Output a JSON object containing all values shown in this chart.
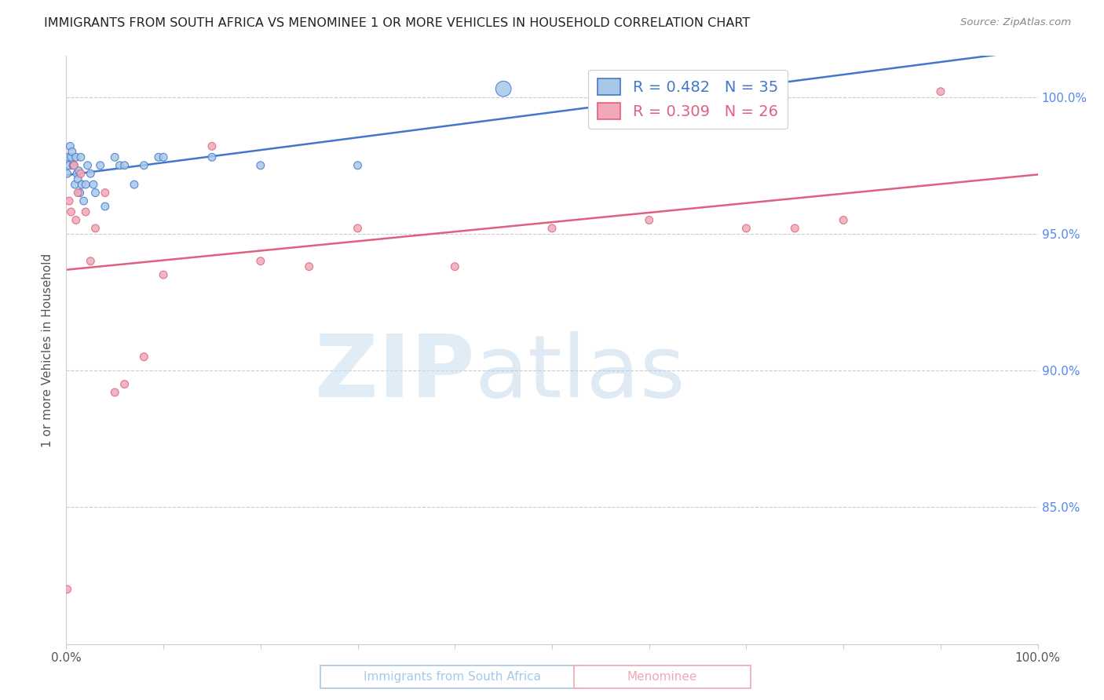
{
  "title": "IMMIGRANTS FROM SOUTH AFRICA VS MENOMINEE 1 OR MORE VEHICLES IN HOUSEHOLD CORRELATION CHART",
  "source_text": "Source: ZipAtlas.com",
  "ylabel": "1 or more Vehicles in Household",
  "legend_label1": "Immigrants from South Africa",
  "legend_label2": "Menominee",
  "R1": 0.482,
  "N1": 35,
  "R2": 0.309,
  "N2": 26,
  "xlim": [
    0.0,
    100.0
  ],
  "ylim": [
    80.0,
    101.5
  ],
  "yticks": [
    85.0,
    90.0,
    95.0,
    100.0
  ],
  "xticks": [
    0.0,
    10.0,
    20.0,
    30.0,
    40.0,
    50.0,
    60.0,
    70.0,
    80.0,
    90.0,
    100.0
  ],
  "color_blue": "#a8c8e8",
  "color_pink": "#f0a8b8",
  "line_blue": "#4477cc",
  "line_pink": "#e06080",
  "background_color": "#ffffff",
  "blue_x": [
    0.1,
    0.2,
    0.3,
    0.4,
    0.5,
    0.6,
    0.7,
    0.8,
    0.9,
    1.0,
    1.1,
    1.2,
    1.3,
    1.4,
    1.5,
    1.6,
    1.8,
    2.0,
    2.2,
    2.5,
    2.8,
    3.0,
    3.5,
    4.0,
    5.0,
    5.5,
    6.0,
    7.0,
    8.0,
    9.5,
    10.0,
    15.0,
    20.0,
    30.0,
    45.0
  ],
  "blue_y": [
    97.2,
    97.8,
    97.5,
    98.2,
    97.8,
    98.0,
    97.5,
    97.5,
    96.8,
    97.8,
    97.2,
    97.0,
    97.3,
    96.5,
    97.8,
    96.8,
    96.2,
    96.8,
    97.5,
    97.2,
    96.8,
    96.5,
    97.5,
    96.0,
    97.8,
    97.5,
    97.5,
    96.8,
    97.5,
    97.8,
    97.8,
    97.8,
    97.5,
    97.5,
    100.3
  ],
  "blue_size_vals": [
    50,
    50,
    50,
    50,
    50,
    50,
    50,
    50,
    50,
    50,
    50,
    50,
    50,
    50,
    50,
    50,
    50,
    50,
    50,
    50,
    50,
    50,
    50,
    50,
    50,
    50,
    50,
    50,
    50,
    50,
    50,
    50,
    50,
    50,
    200
  ],
  "pink_x": [
    0.1,
    0.3,
    0.5,
    0.8,
    1.0,
    1.2,
    1.5,
    2.0,
    2.5,
    3.0,
    4.0,
    5.0,
    6.0,
    8.0,
    10.0,
    15.0,
    20.0,
    25.0,
    30.0,
    40.0,
    50.0,
    60.0,
    70.0,
    75.0,
    80.0,
    90.0
  ],
  "pink_y": [
    82.0,
    96.2,
    95.8,
    97.5,
    95.5,
    96.5,
    97.2,
    95.8,
    94.0,
    95.2,
    96.5,
    89.2,
    89.5,
    90.5,
    93.5,
    98.2,
    94.0,
    93.8,
    95.2,
    93.8,
    95.2,
    95.5,
    95.2,
    95.2,
    95.5,
    100.2
  ],
  "pink_size_vals": [
    50,
    50,
    50,
    50,
    50,
    50,
    50,
    50,
    50,
    50,
    50,
    50,
    50,
    50,
    50,
    50,
    50,
    50,
    50,
    50,
    50,
    50,
    50,
    50,
    50,
    50
  ]
}
